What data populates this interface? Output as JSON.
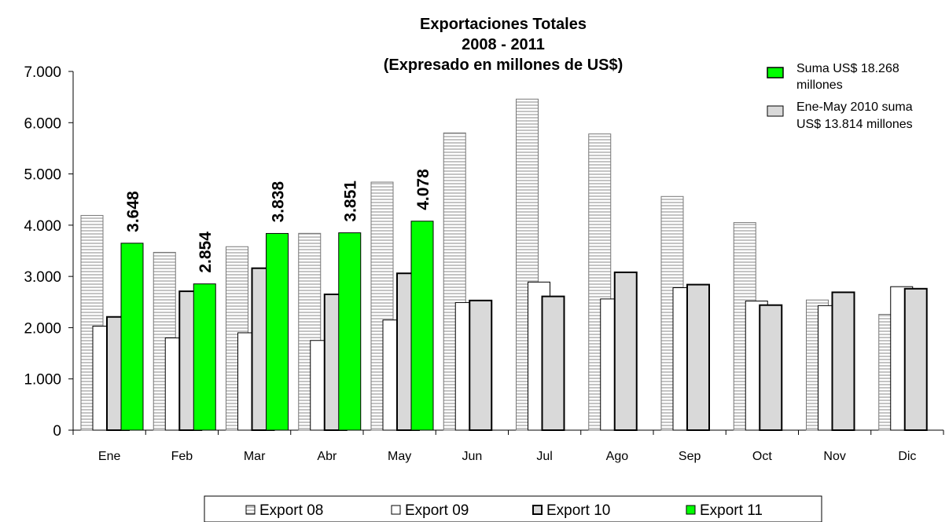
{
  "chart_data": {
    "type": "bar",
    "title_lines": [
      "Exportaciones Totales",
      "2008 - 2011",
      "(Expresado en millones de US$)"
    ],
    "categories": [
      "Ene",
      "Feb",
      "Mar",
      "Abr",
      "May",
      "Jun",
      "Jul",
      "Ago",
      "Sep",
      "Oct",
      "Nov",
      "Dic"
    ],
    "ylim": [
      0,
      7000
    ],
    "yticks": [
      0,
      1000,
      2000,
      3000,
      4000,
      5000,
      6000,
      7000
    ],
    "ytick_labels": [
      "0",
      "1.000",
      "2.000",
      "3.000",
      "4.000",
      "5.000",
      "6.000",
      "7.000"
    ],
    "grid": false,
    "legend_position": "bottom",
    "series": [
      {
        "name": "Export 08",
        "style": "horizontal-hatch",
        "color": "#ffffff",
        "values": [
          4190,
          3470,
          3580,
          3840,
          4840,
          5800,
          6460,
          5780,
          4560,
          4050,
          2540,
          2260
        ]
      },
      {
        "name": "Export 09",
        "style": "white",
        "color": "#ffffff",
        "values": [
          2030,
          1800,
          1900,
          1750,
          2150,
          2490,
          2890,
          2560,
          2780,
          2520,
          2430,
          2800
        ]
      },
      {
        "name": "Export 10",
        "style": "gray",
        "color": "#d9d9d9",
        "values": [
          2210,
          2710,
          3160,
          2650,
          3060,
          2530,
          2610,
          3080,
          2840,
          2440,
          2690,
          2760
        ]
      },
      {
        "name": "Export 11",
        "style": "green",
        "color": "#00ff00",
        "values": [
          3648,
          2854,
          3838,
          3851,
          4078,
          null,
          null,
          null,
          null,
          null,
          null,
          null
        ],
        "data_labels": [
          "3.648",
          "2.854",
          "3.838",
          "3.851",
          "4.078"
        ]
      }
    ],
    "annotations": [
      {
        "color": "#00ff00",
        "lines": [
          "Suma US$ 18.268",
          "millones"
        ]
      },
      {
        "color": "#d9d9d9",
        "lines": [
          "Ene-May 2010 suma",
          "US$ 13.814 millones"
        ]
      }
    ]
  }
}
